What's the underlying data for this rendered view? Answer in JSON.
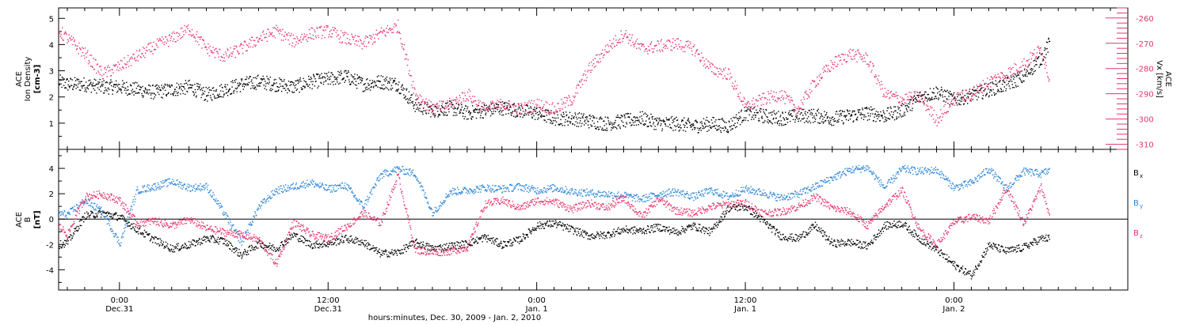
{
  "chart_data": [
    {
      "type": "scatter",
      "panel": "top",
      "x_unit": "hours since Dec 30 00:00",
      "xlim": [
        20.5,
        82
      ],
      "left_axis": {
        "label_lines": [
          "ACE",
          "Ion Density",
          "[cm-3]"
        ],
        "ylim": [
          0,
          5.4
        ],
        "ticks": [
          1,
          2,
          3,
          4,
          5
        ],
        "tick_labels": [
          "1",
          "2",
          "3",
          "4",
          "5"
        ],
        "color": "#000000"
      },
      "right_axis": {
        "label_lines": [
          "ACE",
          "Vx [km/s]"
        ],
        "ylim": [
          -312,
          -256
        ],
        "ticks": [
          -310,
          -300,
          -290,
          -280,
          -270,
          -260
        ],
        "tick_labels": [
          "-310",
          "-300",
          "-290",
          "-280",
          "-270",
          "-260"
        ],
        "color": "#e8336b"
      },
      "series": [
        {
          "axis": "left",
          "color": "#000000",
          "x": [
            20.5,
            21,
            22,
            23,
            24,
            25,
            26,
            27,
            28,
            29,
            30,
            31,
            32,
            33,
            34,
            35,
            36,
            37,
            38,
            39,
            40,
            41,
            42,
            43,
            44,
            45,
            46,
            47,
            48,
            49,
            50,
            51,
            52,
            53,
            54,
            55,
            56,
            57,
            58,
            59,
            60,
            61,
            62,
            63,
            64,
            65,
            66,
            67,
            68,
            69,
            70,
            71,
            72,
            73,
            74,
            75,
            76,
            77,
            77.5
          ],
          "y": [
            2.6,
            2.5,
            2.5,
            2.4,
            2.4,
            2.3,
            2.2,
            2.3,
            2.4,
            2.1,
            2.3,
            2.5,
            2.6,
            2.5,
            2.4,
            2.6,
            2.7,
            2.8,
            2.5,
            2.6,
            2.5,
            1.7,
            1.5,
            1.6,
            1.4,
            1.5,
            1.6,
            1.5,
            1.4,
            1.2,
            1.2,
            1.1,
            1.0,
            1.1,
            1.2,
            1.0,
            1.0,
            0.9,
            1.0,
            0.9,
            1.4,
            1.3,
            1.2,
            1.3,
            1.3,
            1.2,
            1.3,
            1.4,
            1.3,
            1.5,
            2.0,
            2.2,
            1.9,
            2.1,
            2.3,
            2.5,
            2.8,
            3.5,
            4.1
          ]
        },
        {
          "axis": "right",
          "color": "#e8336b",
          "x": [
            20.5,
            21,
            22,
            23,
            24,
            25,
            26,
            27,
            28,
            29,
            30,
            31,
            32,
            33,
            34,
            35,
            36,
            37,
            38,
            39,
            40,
            41,
            42,
            43,
            44,
            45,
            46,
            47,
            48,
            49,
            50,
            51,
            52,
            53,
            54,
            55,
            56,
            57,
            58,
            59,
            60,
            61,
            62,
            63,
            64,
            65,
            66,
            67,
            68,
            69,
            70,
            71,
            72,
            73,
            74,
            75,
            76,
            77,
            77.5
          ],
          "y": [
            -265,
            -268,
            -274,
            -282,
            -279,
            -275,
            -271,
            -268,
            -264,
            -272,
            -275,
            -272,
            -268,
            -265,
            -269,
            -266,
            -265,
            -268,
            -270,
            -266,
            -263,
            -290,
            -296,
            -294,
            -290,
            -296,
            -294,
            -296,
            -294,
            -296,
            -292,
            -280,
            -272,
            -266,
            -272,
            -271,
            -270,
            -272,
            -280,
            -282,
            -295,
            -292,
            -290,
            -296,
            -285,
            -278,
            -274,
            -276,
            -290,
            -292,
            -291,
            -300,
            -292,
            -290,
            -285,
            -282,
            -278,
            -272,
            -285
          ]
        }
      ]
    },
    {
      "type": "scatter",
      "panel": "bottom",
      "x_unit": "hours since Dec 30 00:00",
      "xlim": [
        20.5,
        82
      ],
      "y_axis": {
        "label_lines": [
          "ACE",
          "B",
          "[nT]"
        ],
        "ylim": [
          -5.6,
          5.5
        ],
        "ticks": [
          -4,
          -2,
          0,
          2,
          4
        ],
        "tick_labels": [
          "-4",
          "-2",
          "0",
          "2",
          "4"
        ]
      },
      "series": [
        {
          "name": "Bx",
          "color": "#000000",
          "x": [
            20.5,
            21,
            22,
            23,
            24,
            25,
            26,
            27,
            28,
            29,
            30,
            31,
            32,
            33,
            34,
            35,
            36,
            37,
            38,
            39,
            40,
            41,
            42,
            43,
            44,
            45,
            46,
            47,
            48,
            49,
            50,
            51,
            52,
            53,
            54,
            55,
            56,
            57,
            58,
            59,
            60,
            61,
            62,
            63,
            64,
            65,
            66,
            67,
            68,
            69,
            70,
            71,
            72,
            73,
            74,
            75,
            76,
            77,
            77.5
          ],
          "y": [
            -2.0,
            -1.8,
            0.3,
            0.5,
            0.2,
            -0.8,
            -1.6,
            -2.3,
            -2.0,
            -1.5,
            -1.7,
            -2.8,
            -1.9,
            -2.3,
            -1.2,
            -2.0,
            -1.9,
            -1.5,
            -1.8,
            -2.7,
            -2.6,
            -1.8,
            -2.3,
            -2.1,
            -1.9,
            -1.4,
            -2.0,
            -1.6,
            -0.5,
            -0.3,
            -0.8,
            -1.3,
            -1.2,
            -0.8,
            -0.9,
            -0.6,
            -1.0,
            -0.5,
            -1.0,
            0.9,
            1.0,
            -0.1,
            -1.3,
            -1.5,
            -0.5,
            -1.9,
            -1.8,
            -2.1,
            -0.5,
            -0.3,
            -1.5,
            -2.4,
            -3.6,
            -4.4,
            -2.0,
            -2.5,
            -2.2,
            -1.5,
            -1.5
          ]
        },
        {
          "name": "By",
          "color": "#2e86d8",
          "x": [
            20.5,
            21,
            22,
            23,
            24,
            25,
            26,
            27,
            28,
            29,
            30,
            31,
            32,
            33,
            34,
            35,
            36,
            37,
            38,
            39,
            40,
            41,
            42,
            43,
            44,
            45,
            46,
            47,
            48,
            49,
            50,
            51,
            52,
            53,
            54,
            55,
            56,
            57,
            58,
            59,
            60,
            61,
            62,
            63,
            64,
            65,
            66,
            67,
            68,
            69,
            70,
            71,
            72,
            73,
            74,
            75,
            76,
            77,
            77.5
          ],
          "y": [
            0.5,
            0.4,
            1.5,
            0.6,
            -1.9,
            2.3,
            2.6,
            3.0,
            2.5,
            2.6,
            0.5,
            -1.8,
            1.0,
            2.3,
            2.6,
            2.9,
            2.4,
            2.7,
            1.0,
            3.5,
            4.0,
            3.6,
            0.5,
            2.2,
            2.3,
            2.5,
            2.4,
            2.6,
            2.3,
            2.5,
            2.2,
            2.1,
            2.0,
            1.9,
            1.6,
            2.0,
            2.2,
            1.8,
            2.3,
            1.8,
            2.4,
            2.1,
            1.7,
            2.0,
            2.6,
            3.3,
            3.9,
            4.1,
            2.5,
            4.0,
            3.8,
            3.9,
            2.5,
            2.9,
            4.0,
            2.4,
            3.8,
            3.6,
            3.9
          ]
        },
        {
          "name": "Bz",
          "color": "#e8336b",
          "x": [
            20.5,
            21,
            22,
            23,
            24,
            25,
            26,
            27,
            28,
            29,
            30,
            31,
            32,
            33,
            34,
            35,
            36,
            37,
            38,
            39,
            40,
            41,
            42,
            43,
            44,
            45,
            46,
            47,
            48,
            49,
            50,
            51,
            52,
            53,
            54,
            55,
            56,
            57,
            58,
            59,
            60,
            61,
            62,
            63,
            64,
            65,
            66,
            67,
            68,
            69,
            70,
            71,
            72,
            73,
            74,
            75,
            76,
            77,
            77.5
          ],
          "y": [
            -0.5,
            -1.2,
            1.8,
            2.0,
            1.5,
            -0.3,
            -0.1,
            -0.5,
            0.0,
            -0.7,
            -1.0,
            -1.2,
            -1.6,
            -3.5,
            -0.2,
            -1.2,
            -1.5,
            -0.6,
            0.5,
            -0.3,
            3.5,
            -2.4,
            -2.6,
            -2.5,
            -2.2,
            1.2,
            1.5,
            0.9,
            1.5,
            1.4,
            0.8,
            1.3,
            0.9,
            1.7,
            0.2,
            1.6,
            0.7,
            0.5,
            1.0,
            1.2,
            1.3,
            0.5,
            0.6,
            1.0,
            1.8,
            0.9,
            0.6,
            -0.5,
            1.1,
            2.3,
            -0.8,
            -2.0,
            -0.2,
            0.2,
            -0.1,
            2.5,
            -0.3,
            2.6,
            0.2
          ]
        }
      ]
    }
  ],
  "legend": [
    {
      "label": "B",
      "sub": "x",
      "color": "#000000"
    },
    {
      "label": "B",
      "sub": "y",
      "color": "#2e86d8"
    },
    {
      "label": "B",
      "sub": "z",
      "color": "#e8336b"
    }
  ],
  "x_axis": {
    "ticks": [
      {
        "hour": 24,
        "time": "0:00",
        "date": "Dec.31"
      },
      {
        "hour": 36,
        "time": "12:00",
        "date": "Dec.31"
      },
      {
        "hour": 48,
        "time": "0:00",
        "date": "Jan. 1"
      },
      {
        "hour": 60,
        "time": "12:00",
        "date": "Jan. 1"
      },
      {
        "hour": 72,
        "time": "0:00",
        "date": "Jan. 2"
      }
    ],
    "caption": "hours:minutes, Dec. 30, 2009 - Jan.  2, 2010"
  }
}
